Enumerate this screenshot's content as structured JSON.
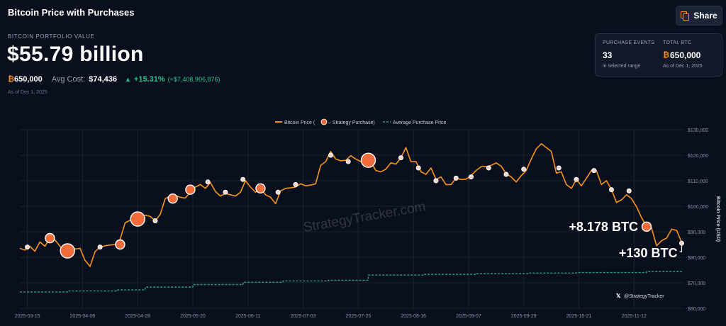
{
  "header": {
    "title": "Bitcoin Price with Purchases",
    "share_label": "Share"
  },
  "portfolio": {
    "label": "BITCOIN PORTFOLIO VALUE",
    "value": "$55.79 billion",
    "btc_symbol": "₿",
    "btc_amount": "650,000",
    "avg_cost_label": "Avg Cost:",
    "avg_cost": "$74,436",
    "change_pct": "+15.31%",
    "change_usd": "(+$7,408,906,876)",
    "as_of": "As of Dec 1, 2025"
  },
  "stats": {
    "events_label": "PURCHASE EVENTS",
    "events_value": "33",
    "events_sub": "in selected range",
    "btc_label": "TOTAL BTC",
    "btc_symbol": "₿",
    "btc_value": "650,000",
    "btc_sub": "As of Dec 1, 2025"
  },
  "colors": {
    "price_line": "#f7931a",
    "purchase_dot": "#f26b3a",
    "average_line": "#26a17b",
    "background": "#0a0f1d",
    "grid": "#1b2230"
  },
  "chart_data": {
    "type": "line",
    "legend": {
      "position": "top-center",
      "items": [
        "Bitcoin Price (",
        "– Strategy Purchase)",
        "Average Purchase Price"
      ]
    },
    "ylabel": "Bitcoin Price (USD)",
    "ylim": [
      60000,
      130000
    ],
    "y_ticks": [
      60000,
      70000,
      80000,
      90000,
      100000,
      110000,
      120000,
      130000
    ],
    "y_tick_labels": [
      "$60,000",
      "$70,000",
      "$80,000",
      "$90,000",
      "$100,000",
      "$110,000",
      "$120,000",
      "$130,000"
    ],
    "x_range": [
      "2025-03-12",
      "2025-12-02"
    ],
    "x_ticks": [
      "2025-03-15",
      "2025-04-06",
      "2025-04-28",
      "2025-05-20",
      "2025-06-11",
      "2025-07-03",
      "2025-07-25",
      "2025-08-16",
      "2025-09-07",
      "2025-09-29",
      "2025-10-21",
      "2025-11-12"
    ],
    "watermark": "StrategyTracker.com",
    "credit": "@StrategyTracker",
    "series": [
      {
        "name": "Bitcoin Price",
        "points": [
          [
            "2025-03-12",
            83500
          ],
          [
            "2025-03-14",
            82800
          ],
          [
            "2025-03-16",
            84300
          ],
          [
            "2025-03-18",
            82400
          ],
          [
            "2025-03-20",
            86000
          ],
          [
            "2025-03-22",
            84300
          ],
          [
            "2025-03-24",
            87500
          ],
          [
            "2025-03-26",
            86800
          ],
          [
            "2025-03-28",
            84300
          ],
          [
            "2025-03-30",
            82400
          ],
          [
            "2025-04-01",
            85200
          ],
          [
            "2025-04-03",
            83200
          ],
          [
            "2025-04-05",
            83500
          ],
          [
            "2025-04-07",
            78800
          ],
          [
            "2025-04-09",
            76400
          ],
          [
            "2025-04-11",
            82200
          ],
          [
            "2025-04-13",
            84000
          ],
          [
            "2025-04-15",
            84500
          ],
          [
            "2025-04-17",
            84800
          ],
          [
            "2025-04-19",
            85000
          ],
          [
            "2025-04-21",
            87000
          ],
          [
            "2025-04-23",
            93500
          ],
          [
            "2025-04-25",
            94500
          ],
          [
            "2025-04-27",
            94100
          ],
          [
            "2025-04-29",
            95000
          ],
          [
            "2025-05-01",
            96500
          ],
          [
            "2025-05-03",
            96000
          ],
          [
            "2025-05-05",
            94300
          ],
          [
            "2025-05-07",
            96800
          ],
          [
            "2025-05-09",
            103000
          ],
          [
            "2025-05-11",
            104000
          ],
          [
            "2025-05-13",
            104200
          ],
          [
            "2025-05-15",
            103500
          ],
          [
            "2025-05-17",
            103200
          ],
          [
            "2025-05-19",
            105500
          ],
          [
            "2025-05-21",
            107500
          ],
          [
            "2025-05-23",
            108500
          ],
          [
            "2025-05-25",
            107000
          ],
          [
            "2025-05-27",
            109300
          ],
          [
            "2025-05-29",
            105800
          ],
          [
            "2025-05-31",
            104000
          ],
          [
            "2025-06-02",
            105000
          ],
          [
            "2025-06-04",
            104500
          ],
          [
            "2025-06-06",
            104000
          ],
          [
            "2025-06-08",
            105500
          ],
          [
            "2025-06-10",
            110000
          ],
          [
            "2025-06-12",
            107500
          ],
          [
            "2025-06-14",
            105500
          ],
          [
            "2025-06-16",
            107000
          ],
          [
            "2025-06-18",
            104500
          ],
          [
            "2025-06-20",
            103500
          ],
          [
            "2025-06-22",
            101000
          ],
          [
            "2025-06-24",
            106000
          ],
          [
            "2025-06-26",
            107000
          ],
          [
            "2025-06-28",
            107200
          ],
          [
            "2025-06-30",
            107500
          ],
          [
            "2025-07-02",
            108800
          ],
          [
            "2025-07-04",
            108000
          ],
          [
            "2025-07-06",
            108300
          ],
          [
            "2025-07-08",
            108800
          ],
          [
            "2025-07-10",
            116000
          ],
          [
            "2025-07-12",
            117500
          ],
          [
            "2025-07-14",
            121500
          ],
          [
            "2025-07-16",
            118500
          ],
          [
            "2025-07-18",
            117800
          ],
          [
            "2025-07-20",
            118000
          ],
          [
            "2025-07-22",
            119800
          ],
          [
            "2025-07-24",
            118500
          ],
          [
            "2025-07-26",
            117500
          ],
          [
            "2025-07-28",
            118000
          ],
          [
            "2025-07-30",
            117500
          ],
          [
            "2025-08-01",
            114000
          ],
          [
            "2025-08-03",
            113500
          ],
          [
            "2025-08-05",
            114500
          ],
          [
            "2025-08-07",
            117000
          ],
          [
            "2025-08-09",
            116500
          ],
          [
            "2025-08-11",
            119000
          ],
          [
            "2025-08-13",
            123000
          ],
          [
            "2025-08-15",
            117500
          ],
          [
            "2025-08-17",
            117500
          ],
          [
            "2025-08-19",
            113500
          ],
          [
            "2025-08-21",
            112500
          ],
          [
            "2025-08-23",
            115000
          ],
          [
            "2025-08-25",
            110500
          ],
          [
            "2025-08-27",
            111500
          ],
          [
            "2025-08-29",
            108500
          ],
          [
            "2025-08-31",
            108500
          ],
          [
            "2025-09-02",
            111000
          ],
          [
            "2025-09-04",
            110500
          ],
          [
            "2025-09-06",
            110600
          ],
          [
            "2025-09-08",
            112000
          ],
          [
            "2025-09-10",
            114000
          ],
          [
            "2025-09-12",
            115500
          ],
          [
            "2025-09-14",
            115500
          ],
          [
            "2025-09-16",
            116000
          ],
          [
            "2025-09-18",
            117000
          ],
          [
            "2025-09-20",
            115700
          ],
          [
            "2025-09-22",
            112700
          ],
          [
            "2025-09-24",
            111500
          ],
          [
            "2025-09-26",
            109500
          ],
          [
            "2025-09-28",
            112000
          ],
          [
            "2025-09-30",
            114000
          ],
          [
            "2025-10-02",
            118500
          ],
          [
            "2025-10-04",
            122500
          ],
          [
            "2025-10-06",
            124500
          ],
          [
            "2025-10-08",
            123000
          ],
          [
            "2025-10-10",
            121500
          ],
          [
            "2025-10-12",
            113000
          ],
          [
            "2025-10-14",
            113500
          ],
          [
            "2025-10-16",
            108500
          ],
          [
            "2025-10-18",
            107000
          ],
          [
            "2025-10-20",
            110500
          ],
          [
            "2025-10-22",
            108000
          ],
          [
            "2025-10-24",
            111000
          ],
          [
            "2025-10-26",
            114000
          ],
          [
            "2025-10-28",
            114000
          ],
          [
            "2025-10-30",
            108500
          ],
          [
            "2025-11-01",
            110000
          ],
          [
            "2025-11-03",
            106500
          ],
          [
            "2025-11-05",
            101500
          ],
          [
            "2025-11-07",
            102500
          ],
          [
            "2025-11-09",
            104500
          ],
          [
            "2025-11-11",
            103000
          ],
          [
            "2025-11-13",
            99800
          ],
          [
            "2025-11-15",
            95500
          ],
          [
            "2025-11-17",
            92200
          ],
          [
            "2025-11-19",
            91500
          ],
          [
            "2025-11-21",
            84500
          ],
          [
            "2025-11-23",
            86500
          ],
          [
            "2025-11-25",
            87500
          ],
          [
            "2025-11-27",
            91000
          ],
          [
            "2025-11-29",
            90500
          ],
          [
            "2025-12-01",
            85800
          ]
        ]
      },
      {
        "name": "Strategy Purchase",
        "points": [
          [
            "2025-03-15",
            84000,
            "s"
          ],
          [
            "2025-03-24",
            87500,
            "m"
          ],
          [
            "2025-03-31",
            82500,
            "l"
          ],
          [
            "2025-04-13",
            84000,
            "s"
          ],
          [
            "2025-04-21",
            85000,
            "m"
          ],
          [
            "2025-04-28",
            95000,
            "l"
          ],
          [
            "2025-05-05",
            94300,
            "s"
          ],
          [
            "2025-05-12",
            103000,
            "m"
          ],
          [
            "2025-05-19",
            106500,
            "m"
          ],
          [
            "2025-05-26",
            109500,
            "s"
          ],
          [
            "2025-06-02",
            105500,
            "s"
          ],
          [
            "2025-06-09",
            110500,
            "s"
          ],
          [
            "2025-06-16",
            107000,
            "m"
          ],
          [
            "2025-06-23",
            105500,
            "s"
          ],
          [
            "2025-06-30",
            108500,
            "s"
          ],
          [
            "2025-07-14",
            120000,
            "s"
          ],
          [
            "2025-07-21",
            117500,
            "s"
          ],
          [
            "2025-07-29",
            118000,
            "l"
          ],
          [
            "2025-08-11",
            119000,
            "s"
          ],
          [
            "2025-08-18",
            115000,
            "s"
          ],
          [
            "2025-08-25",
            110000,
            "s"
          ],
          [
            "2025-09-02",
            111000,
            "s"
          ],
          [
            "2025-09-08",
            111500,
            "s"
          ],
          [
            "2025-09-15",
            115000,
            "s"
          ],
          [
            "2025-09-22",
            112500,
            "s"
          ],
          [
            "2025-09-29",
            114500,
            "s"
          ],
          [
            "2025-10-13",
            115000,
            "s"
          ],
          [
            "2025-10-20",
            110500,
            "s"
          ],
          [
            "2025-10-27",
            114000,
            "s"
          ],
          [
            "2025-11-03",
            106500,
            "s"
          ],
          [
            "2025-11-10",
            106000,
            "s"
          ],
          [
            "2025-11-17",
            92000,
            "m"
          ],
          [
            "2025-12-01",
            85500,
            "s"
          ]
        ]
      },
      {
        "name": "Average Purchase Price",
        "points": [
          [
            "2025-03-12",
            66400
          ],
          [
            "2025-03-31",
            66800
          ],
          [
            "2025-04-20",
            67200
          ],
          [
            "2025-05-01",
            68300
          ],
          [
            "2025-05-20",
            69300
          ],
          [
            "2025-06-09",
            70200
          ],
          [
            "2025-06-25",
            70700
          ],
          [
            "2025-07-13",
            71000
          ],
          [
            "2025-07-29",
            73000
          ],
          [
            "2025-08-20",
            73300
          ],
          [
            "2025-09-10",
            73600
          ],
          [
            "2025-10-01",
            73800
          ],
          [
            "2025-10-20",
            74000
          ],
          [
            "2025-11-17",
            74400
          ],
          [
            "2025-12-01",
            74436
          ]
        ]
      }
    ],
    "annotations": [
      {
        "text": "+8.178 BTC",
        "date": "2025-11-17"
      },
      {
        "text": "+130 BTC",
        "date": "2025-12-01"
      }
    ]
  }
}
